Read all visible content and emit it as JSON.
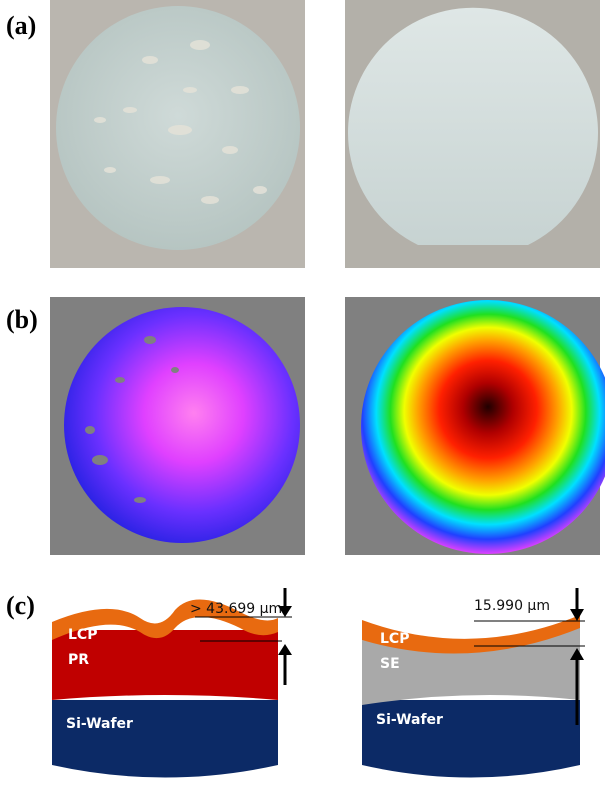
{
  "panels": [
    {
      "label": "(a)"
    },
    {
      "label": "(b)"
    },
    {
      "label": "(c)",
      "left": {
        "measurement": "> 43.699 µm",
        "layers": [
          "LCP",
          "PR",
          "Si-Wafer"
        ]
      },
      "right": {
        "measurement": "15.990 µm",
        "layers": [
          "LCP",
          "SE",
          "Si-Wafer"
        ]
      }
    }
  ]
}
